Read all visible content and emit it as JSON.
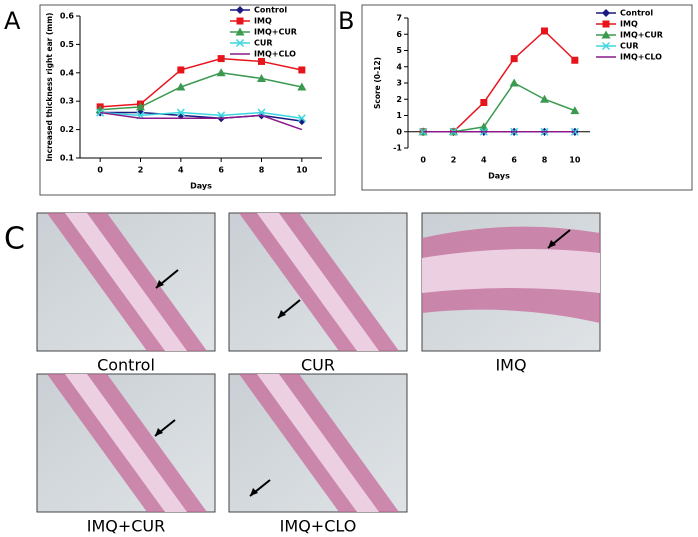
{
  "chart_data": [
    {
      "type": "line",
      "panel": "A",
      "ylabel": "Increased thickness right ear (mm)",
      "xlabel": "Days",
      "x": [
        0,
        2,
        4,
        6,
        8,
        10
      ],
      "xlim": [
        -1,
        11
      ],
      "xticks": [
        0,
        2,
        4,
        6,
        8,
        10
      ],
      "ylim": [
        0.1,
        0.6
      ],
      "yticks": [
        0.1,
        0.2,
        0.3,
        0.4,
        0.5,
        0.6
      ],
      "legend": "top-right",
      "series": [
        {
          "name": "Control",
          "color": "#1a1a80",
          "marker": "diamond",
          "values": [
            0.26,
            0.26,
            0.25,
            0.24,
            0.25,
            0.23
          ]
        },
        {
          "name": "IMQ",
          "color": "#e8141c",
          "marker": "square",
          "values": [
            0.28,
            0.29,
            0.41,
            0.45,
            0.44,
            0.41
          ]
        },
        {
          "name": "IMQ+CUR",
          "color": "#3c9a50",
          "marker": "triangle",
          "values": [
            0.27,
            0.28,
            0.35,
            0.4,
            0.38,
            0.35
          ]
        },
        {
          "name": "CUR",
          "color": "#3fd6e0",
          "marker": "x",
          "values": [
            0.26,
            0.25,
            0.26,
            0.25,
            0.26,
            0.24
          ]
        },
        {
          "name": "IMQ+CLO",
          "color": "#8a1a8a",
          "marker": "none",
          "values": [
            0.26,
            0.24,
            0.24,
            0.24,
            0.25,
            0.2
          ]
        }
      ]
    },
    {
      "type": "line",
      "panel": "B",
      "ylabel": "Score (0-12)",
      "xlabel": "Days",
      "x": [
        0,
        2,
        4,
        6,
        8,
        10
      ],
      "xlim": [
        -1,
        11
      ],
      "xticks": [
        0,
        2,
        4,
        6,
        8,
        10
      ],
      "ylim": [
        -1,
        7
      ],
      "yticks": [
        -1,
        0,
        1,
        2,
        3,
        4,
        5,
        6,
        7
      ],
      "legend": "top-right",
      "series": [
        {
          "name": "Control",
          "color": "#1a1a80",
          "marker": "diamond",
          "values": [
            0,
            0,
            0,
            0,
            0,
            0
          ]
        },
        {
          "name": "IMQ",
          "color": "#e8141c",
          "marker": "square",
          "values": [
            0,
            0,
            1.8,
            4.5,
            6.2,
            4.4
          ]
        },
        {
          "name": "IMQ+CUR",
          "color": "#3c9a50",
          "marker": "triangle",
          "values": [
            0,
            0,
            0.3,
            3.0,
            2.0,
            1.3
          ]
        },
        {
          "name": "CUR",
          "color": "#3fd6e0",
          "marker": "x",
          "values": [
            0,
            0,
            0,
            0,
            0,
            0
          ]
        },
        {
          "name": "IMQ+CLO",
          "color": "#8a1a8a",
          "marker": "none",
          "values": [
            0,
            0,
            0,
            0,
            0,
            0
          ]
        }
      ]
    }
  ],
  "panel_c": {
    "label": "C",
    "images": [
      "Control",
      "CUR",
      "IMQ",
      "IMQ+CUR",
      "IMQ+CLO"
    ]
  }
}
